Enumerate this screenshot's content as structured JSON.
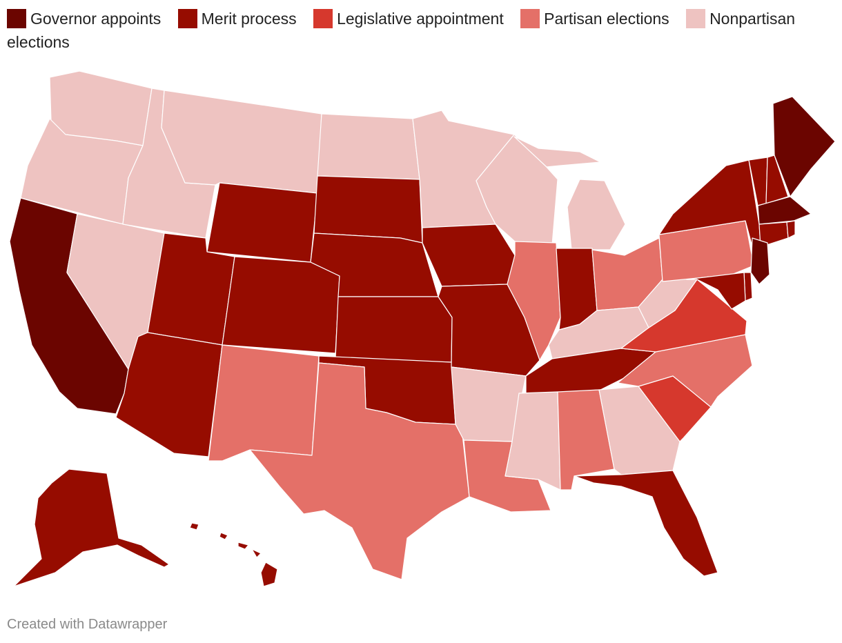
{
  "legend": [
    {
      "key": "governor",
      "label": "Governor appoints",
      "color": "#6b0500"
    },
    {
      "key": "merit",
      "label": "Merit process",
      "color": "#960c00"
    },
    {
      "key": "legislative",
      "label": "Legislative appointment",
      "color": "#d6382d"
    },
    {
      "key": "partisan",
      "label": "Partisan elections",
      "color": "#e47068"
    },
    {
      "key": "nonpartisan",
      "label": "Nonpartisan elections",
      "color": "#eec3c1"
    }
  ],
  "states": {
    "WA": "nonpartisan",
    "OR": "nonpartisan",
    "CA": "governor",
    "NV": "nonpartisan",
    "ID": "nonpartisan",
    "MT": "nonpartisan",
    "WY": "merit",
    "UT": "merit",
    "AZ": "merit",
    "CO": "merit",
    "NM": "partisan",
    "ND": "nonpartisan",
    "SD": "merit",
    "NE": "merit",
    "KS": "merit",
    "OK": "merit",
    "TX": "partisan",
    "MN": "nonpartisan",
    "IA": "merit",
    "MO": "merit",
    "AR": "nonpartisan",
    "LA": "partisan",
    "WI": "nonpartisan",
    "IL": "partisan",
    "MI": "nonpartisan",
    "IN": "merit",
    "OH": "partisan",
    "KY": "nonpartisan",
    "TN": "merit",
    "MS": "nonpartisan",
    "AL": "partisan",
    "GA": "nonpartisan",
    "FL": "merit",
    "SC": "legislative",
    "NC": "partisan",
    "VA": "legislative",
    "WV": "nonpartisan",
    "PA": "partisan",
    "NY": "merit",
    "VT": "merit",
    "NH": "merit",
    "ME": "governor",
    "MA": "governor",
    "RI": "merit",
    "CT": "merit",
    "NJ": "governor",
    "DE": "merit",
    "MD": "merit",
    "AK": "merit",
    "HI": "merit"
  },
  "footer": {
    "credit": "Created with Datawrapper"
  }
}
